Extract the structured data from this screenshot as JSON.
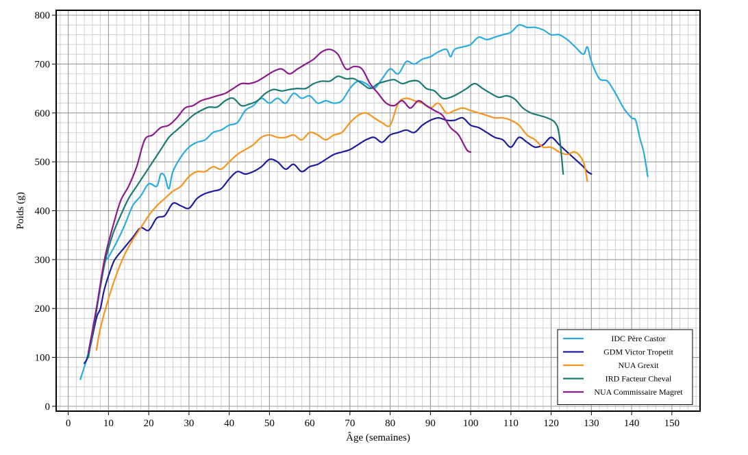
{
  "chart_data": {
    "type": "line",
    "title": "",
    "xlabel": "Âge (semaines)",
    "ylabel": "Poids (g)",
    "xlim": [
      -3,
      157
    ],
    "ylim": [
      -10,
      810
    ],
    "xticks": [
      0,
      10,
      20,
      30,
      40,
      50,
      60,
      70,
      80,
      90,
      100,
      110,
      120,
      130,
      140,
      150
    ],
    "yticks": [
      0,
      100,
      200,
      300,
      400,
      500,
      600,
      700,
      800
    ],
    "grid": true,
    "legend_position": "bottom-right",
    "series": [
      {
        "name": "IDC Père Castor",
        "color": "#29abe2",
        "points": [
          [
            3,
            55
          ],
          [
            5,
            110
          ],
          [
            7,
            200
          ],
          [
            9,
            290
          ],
          [
            10,
            305
          ],
          [
            12,
            335
          ],
          [
            14,
            370
          ],
          [
            16,
            410
          ],
          [
            18,
            430
          ],
          [
            20,
            455
          ],
          [
            22,
            450
          ],
          [
            23,
            475
          ],
          [
            24,
            470
          ],
          [
            25,
            445
          ],
          [
            26,
            480
          ],
          [
            28,
            510
          ],
          [
            30,
            530
          ],
          [
            32,
            540
          ],
          [
            34,
            545
          ],
          [
            36,
            560
          ],
          [
            38,
            565
          ],
          [
            40,
            575
          ],
          [
            42,
            580
          ],
          [
            44,
            605
          ],
          [
            46,
            615
          ],
          [
            48,
            630
          ],
          [
            50,
            620
          ],
          [
            52,
            630
          ],
          [
            54,
            620
          ],
          [
            56,
            640
          ],
          [
            58,
            630
          ],
          [
            60,
            635
          ],
          [
            62,
            620
          ],
          [
            64,
            625
          ],
          [
            66,
            620
          ],
          [
            68,
            625
          ],
          [
            70,
            650
          ],
          [
            72,
            665
          ],
          [
            74,
            660
          ],
          [
            76,
            650
          ],
          [
            78,
            670
          ],
          [
            80,
            690
          ],
          [
            82,
            680
          ],
          [
            84,
            705
          ],
          [
            86,
            700
          ],
          [
            88,
            710
          ],
          [
            90,
            715
          ],
          [
            92,
            725
          ],
          [
            94,
            730
          ],
          [
            95,
            715
          ],
          [
            96,
            730
          ],
          [
            98,
            735
          ],
          [
            100,
            740
          ],
          [
            102,
            755
          ],
          [
            104,
            750
          ],
          [
            106,
            755
          ],
          [
            108,
            760
          ],
          [
            110,
            765
          ],
          [
            112,
            780
          ],
          [
            114,
            775
          ],
          [
            116,
            775
          ],
          [
            118,
            770
          ],
          [
            120,
            760
          ],
          [
            122,
            760
          ],
          [
            124,
            750
          ],
          [
            126,
            735
          ],
          [
            128,
            720
          ],
          [
            129,
            735
          ],
          [
            130,
            705
          ],
          [
            132,
            670
          ],
          [
            134,
            665
          ],
          [
            136,
            640
          ],
          [
            138,
            610
          ],
          [
            140,
            590
          ],
          [
            141,
            585
          ],
          [
            142,
            550
          ],
          [
            143,
            520
          ],
          [
            144,
            470
          ]
        ]
      },
      {
        "name": "GDM Victor Tropetit",
        "color": "#1c1c9c",
        "points": [
          [
            4,
            88
          ],
          [
            5,
            105
          ],
          [
            7,
            180
          ],
          [
            8,
            200
          ],
          [
            9,
            240
          ],
          [
            11,
            290
          ],
          [
            12,
            305
          ],
          [
            14,
            325
          ],
          [
            16,
            345
          ],
          [
            18,
            365
          ],
          [
            20,
            360
          ],
          [
            22,
            385
          ],
          [
            24,
            390
          ],
          [
            26,
            415
          ],
          [
            28,
            410
          ],
          [
            30,
            405
          ],
          [
            32,
            425
          ],
          [
            34,
            435
          ],
          [
            36,
            440
          ],
          [
            38,
            445
          ],
          [
            40,
            465
          ],
          [
            42,
            480
          ],
          [
            44,
            475
          ],
          [
            46,
            480
          ],
          [
            48,
            490
          ],
          [
            50,
            505
          ],
          [
            52,
            500
          ],
          [
            54,
            485
          ],
          [
            56,
            495
          ],
          [
            58,
            480
          ],
          [
            60,
            490
          ],
          [
            62,
            495
          ],
          [
            64,
            505
          ],
          [
            66,
            515
          ],
          [
            68,
            520
          ],
          [
            70,
            525
          ],
          [
            72,
            535
          ],
          [
            74,
            545
          ],
          [
            76,
            550
          ],
          [
            78,
            540
          ],
          [
            80,
            555
          ],
          [
            82,
            560
          ],
          [
            84,
            565
          ],
          [
            86,
            560
          ],
          [
            88,
            575
          ],
          [
            90,
            585
          ],
          [
            92,
            590
          ],
          [
            94,
            585
          ],
          [
            96,
            585
          ],
          [
            98,
            590
          ],
          [
            100,
            575
          ],
          [
            102,
            570
          ],
          [
            104,
            560
          ],
          [
            106,
            550
          ],
          [
            108,
            545
          ],
          [
            110,
            530
          ],
          [
            112,
            550
          ],
          [
            114,
            540
          ],
          [
            116,
            530
          ],
          [
            118,
            535
          ],
          [
            120,
            550
          ],
          [
            122,
            535
          ],
          [
            124,
            520
          ],
          [
            126,
            505
          ],
          [
            128,
            490
          ],
          [
            129,
            480
          ],
          [
            130,
            475
          ]
        ]
      },
      {
        "name": "NUA Grexit",
        "color": "#f7941d",
        "points": [
          [
            7,
            115
          ],
          [
            8,
            160
          ],
          [
            10,
            220
          ],
          [
            12,
            270
          ],
          [
            14,
            310
          ],
          [
            16,
            340
          ],
          [
            18,
            365
          ],
          [
            20,
            390
          ],
          [
            22,
            410
          ],
          [
            24,
            425
          ],
          [
            26,
            440
          ],
          [
            28,
            450
          ],
          [
            30,
            470
          ],
          [
            32,
            480
          ],
          [
            34,
            480
          ],
          [
            36,
            490
          ],
          [
            38,
            485
          ],
          [
            40,
            500
          ],
          [
            42,
            515
          ],
          [
            44,
            525
          ],
          [
            46,
            535
          ],
          [
            48,
            550
          ],
          [
            50,
            555
          ],
          [
            52,
            550
          ],
          [
            54,
            550
          ],
          [
            56,
            555
          ],
          [
            58,
            545
          ],
          [
            60,
            560
          ],
          [
            62,
            555
          ],
          [
            64,
            545
          ],
          [
            66,
            555
          ],
          [
            68,
            560
          ],
          [
            70,
            580
          ],
          [
            72,
            595
          ],
          [
            74,
            600
          ],
          [
            76,
            590
          ],
          [
            78,
            580
          ],
          [
            80,
            575
          ],
          [
            82,
            620
          ],
          [
            84,
            630
          ],
          [
            86,
            625
          ],
          [
            88,
            620
          ],
          [
            90,
            610
          ],
          [
            92,
            620
          ],
          [
            94,
            600
          ],
          [
            96,
            605
          ],
          [
            98,
            610
          ],
          [
            100,
            605
          ],
          [
            102,
            600
          ],
          [
            104,
            595
          ],
          [
            106,
            590
          ],
          [
            108,
            590
          ],
          [
            110,
            585
          ],
          [
            112,
            575
          ],
          [
            114,
            555
          ],
          [
            116,
            545
          ],
          [
            118,
            530
          ],
          [
            120,
            530
          ],
          [
            122,
            520
          ],
          [
            124,
            515
          ],
          [
            126,
            520
          ],
          [
            128,
            500
          ],
          [
            129,
            460
          ]
        ]
      },
      {
        "name": "IRD Facteur Cheval",
        "color": "#1a7a73",
        "points": [
          [
            5,
            100
          ],
          [
            7,
            195
          ],
          [
            9,
            290
          ],
          [
            11,
            350
          ],
          [
            13,
            390
          ],
          [
            15,
            425
          ],
          [
            17,
            450
          ],
          [
            19,
            475
          ],
          [
            21,
            500
          ],
          [
            23,
            525
          ],
          [
            25,
            550
          ],
          [
            27,
            565
          ],
          [
            29,
            580
          ],
          [
            31,
            595
          ],
          [
            33,
            605
          ],
          [
            35,
            612
          ],
          [
            37,
            612
          ],
          [
            39,
            625
          ],
          [
            41,
            630
          ],
          [
            43,
            615
          ],
          [
            45,
            618
          ],
          [
            47,
            625
          ],
          [
            49,
            640
          ],
          [
            51,
            648
          ],
          [
            53,
            645
          ],
          [
            55,
            648
          ],
          [
            57,
            650
          ],
          [
            59,
            650
          ],
          [
            61,
            660
          ],
          [
            63,
            665
          ],
          [
            65,
            665
          ],
          [
            67,
            675
          ],
          [
            69,
            670
          ],
          [
            71,
            670
          ],
          [
            73,
            660
          ],
          [
            75,
            650
          ],
          [
            77,
            660
          ],
          [
            79,
            665
          ],
          [
            81,
            668
          ],
          [
            83,
            660
          ],
          [
            85,
            665
          ],
          [
            87,
            665
          ],
          [
            89,
            650
          ],
          [
            91,
            645
          ],
          [
            93,
            630
          ],
          [
            95,
            632
          ],
          [
            97,
            640
          ],
          [
            99,
            650
          ],
          [
            101,
            660
          ],
          [
            103,
            650
          ],
          [
            105,
            640
          ],
          [
            107,
            632
          ],
          [
            109,
            635
          ],
          [
            111,
            628
          ],
          [
            113,
            610
          ],
          [
            115,
            600
          ],
          [
            117,
            595
          ],
          [
            119,
            590
          ],
          [
            121,
            580
          ],
          [
            122,
            555
          ],
          [
            123,
            475
          ]
        ]
      },
      {
        "name": "NUA Commissaire Magret",
        "color": "#8b1a8b",
        "points": [
          [
            5,
            110
          ],
          [
            7,
            200
          ],
          [
            9,
            300
          ],
          [
            11,
            365
          ],
          [
            13,
            420
          ],
          [
            15,
            450
          ],
          [
            17,
            490
          ],
          [
            19,
            545
          ],
          [
            21,
            555
          ],
          [
            23,
            570
          ],
          [
            25,
            575
          ],
          [
            27,
            590
          ],
          [
            29,
            610
          ],
          [
            31,
            615
          ],
          [
            33,
            625
          ],
          [
            35,
            630
          ],
          [
            37,
            635
          ],
          [
            39,
            640
          ],
          [
            41,
            650
          ],
          [
            43,
            660
          ],
          [
            45,
            660
          ],
          [
            47,
            665
          ],
          [
            49,
            675
          ],
          [
            51,
            685
          ],
          [
            53,
            690
          ],
          [
            55,
            680
          ],
          [
            57,
            690
          ],
          [
            59,
            700
          ],
          [
            61,
            710
          ],
          [
            63,
            725
          ],
          [
            65,
            730
          ],
          [
            67,
            720
          ],
          [
            69,
            690
          ],
          [
            71,
            695
          ],
          [
            73,
            690
          ],
          [
            75,
            660
          ],
          [
            77,
            640
          ],
          [
            79,
            620
          ],
          [
            81,
            615
          ],
          [
            83,
            625
          ],
          [
            85,
            610
          ],
          [
            87,
            625
          ],
          [
            89,
            615
          ],
          [
            91,
            605
          ],
          [
            93,
            595
          ],
          [
            95,
            570
          ],
          [
            97,
            555
          ],
          [
            99,
            525
          ],
          [
            100,
            520
          ]
        ]
      }
    ]
  }
}
